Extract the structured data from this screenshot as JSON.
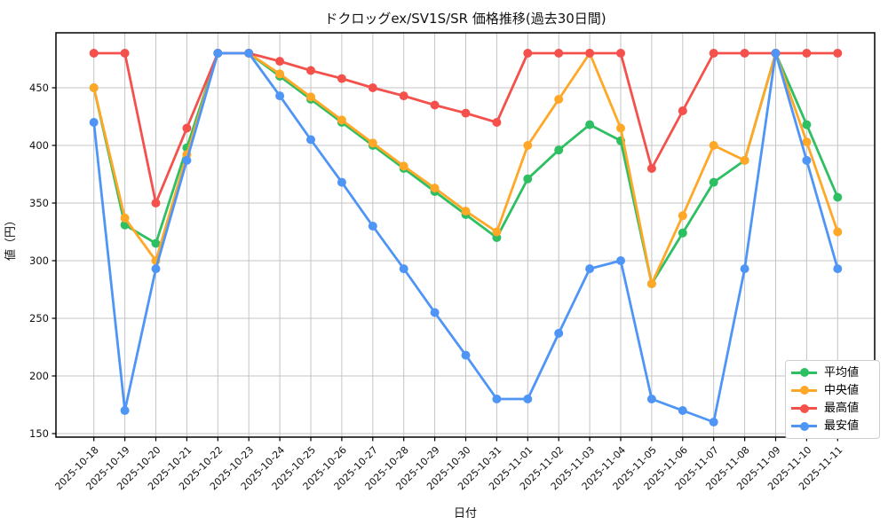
{
  "chart_data": {
    "type": "line",
    "title": "ドクロッグex/SV1S/SR 価格推移(過去30日間)",
    "xlabel": "日付",
    "ylabel": "値（円）",
    "categories": [
      "2025-10-18",
      "2025-10-19",
      "2025-10-20",
      "2025-10-21",
      "2025-10-22",
      "2025-10-23",
      "2025-10-24",
      "2025-10-25",
      "2025-10-26",
      "2025-10-27",
      "2025-10-28",
      "2025-10-29",
      "2025-10-30",
      "2025-10-31",
      "2025-11-01",
      "2025-11-02",
      "2025-11-03",
      "2025-11-04",
      "2025-11-05",
      "2025-11-06",
      "2025-11-07",
      "2025-11-08",
      "2025-11-09",
      "2025-11-10",
      "2025-11-11"
    ],
    "series": [
      {
        "name": "平均値",
        "color": "#2fbf63",
        "values": [
          450,
          331,
          315,
          398,
          480,
          480,
          460,
          440,
          420,
          400,
          380,
          360,
          340,
          320,
          371,
          396,
          418,
          404,
          280,
          324,
          368,
          387,
          480,
          418,
          355
        ]
      },
      {
        "name": "中央値",
        "color": "#ffa726",
        "values": [
          450,
          337,
          300,
          392,
          480,
          480,
          462,
          442,
          422,
          402,
          382,
          363,
          343,
          325,
          400,
          440,
          480,
          415,
          280,
          339,
          400,
          387,
          480,
          403,
          325
        ]
      },
      {
        "name": "最高値",
        "color": "#f4514d",
        "values": [
          480,
          480,
          350,
          415,
          480,
          480,
          473,
          465,
          458,
          450,
          443,
          435,
          428,
          420,
          480,
          480,
          480,
          480,
          380,
          430,
          480,
          480,
          480,
          480,
          480
        ]
      },
      {
        "name": "最安値",
        "color": "#4e95f6",
        "values": [
          420,
          170,
          293,
          387,
          480,
          480,
          443,
          405,
          368,
          330,
          293,
          255,
          218,
          180,
          180,
          237,
          293,
          300,
          180,
          170,
          160,
          293,
          480,
          387,
          293
        ]
      }
    ],
    "y_ticks": [
      150,
      200,
      250,
      300,
      350,
      400,
      450
    ],
    "y_range": [
      147,
      498
    ],
    "grid": true,
    "legend_position": "lower-right",
    "colors": {
      "grid": "#c4c4c4",
      "axis": "#000000",
      "text": "#000000",
      "plot_bg": "#ffffff"
    }
  }
}
